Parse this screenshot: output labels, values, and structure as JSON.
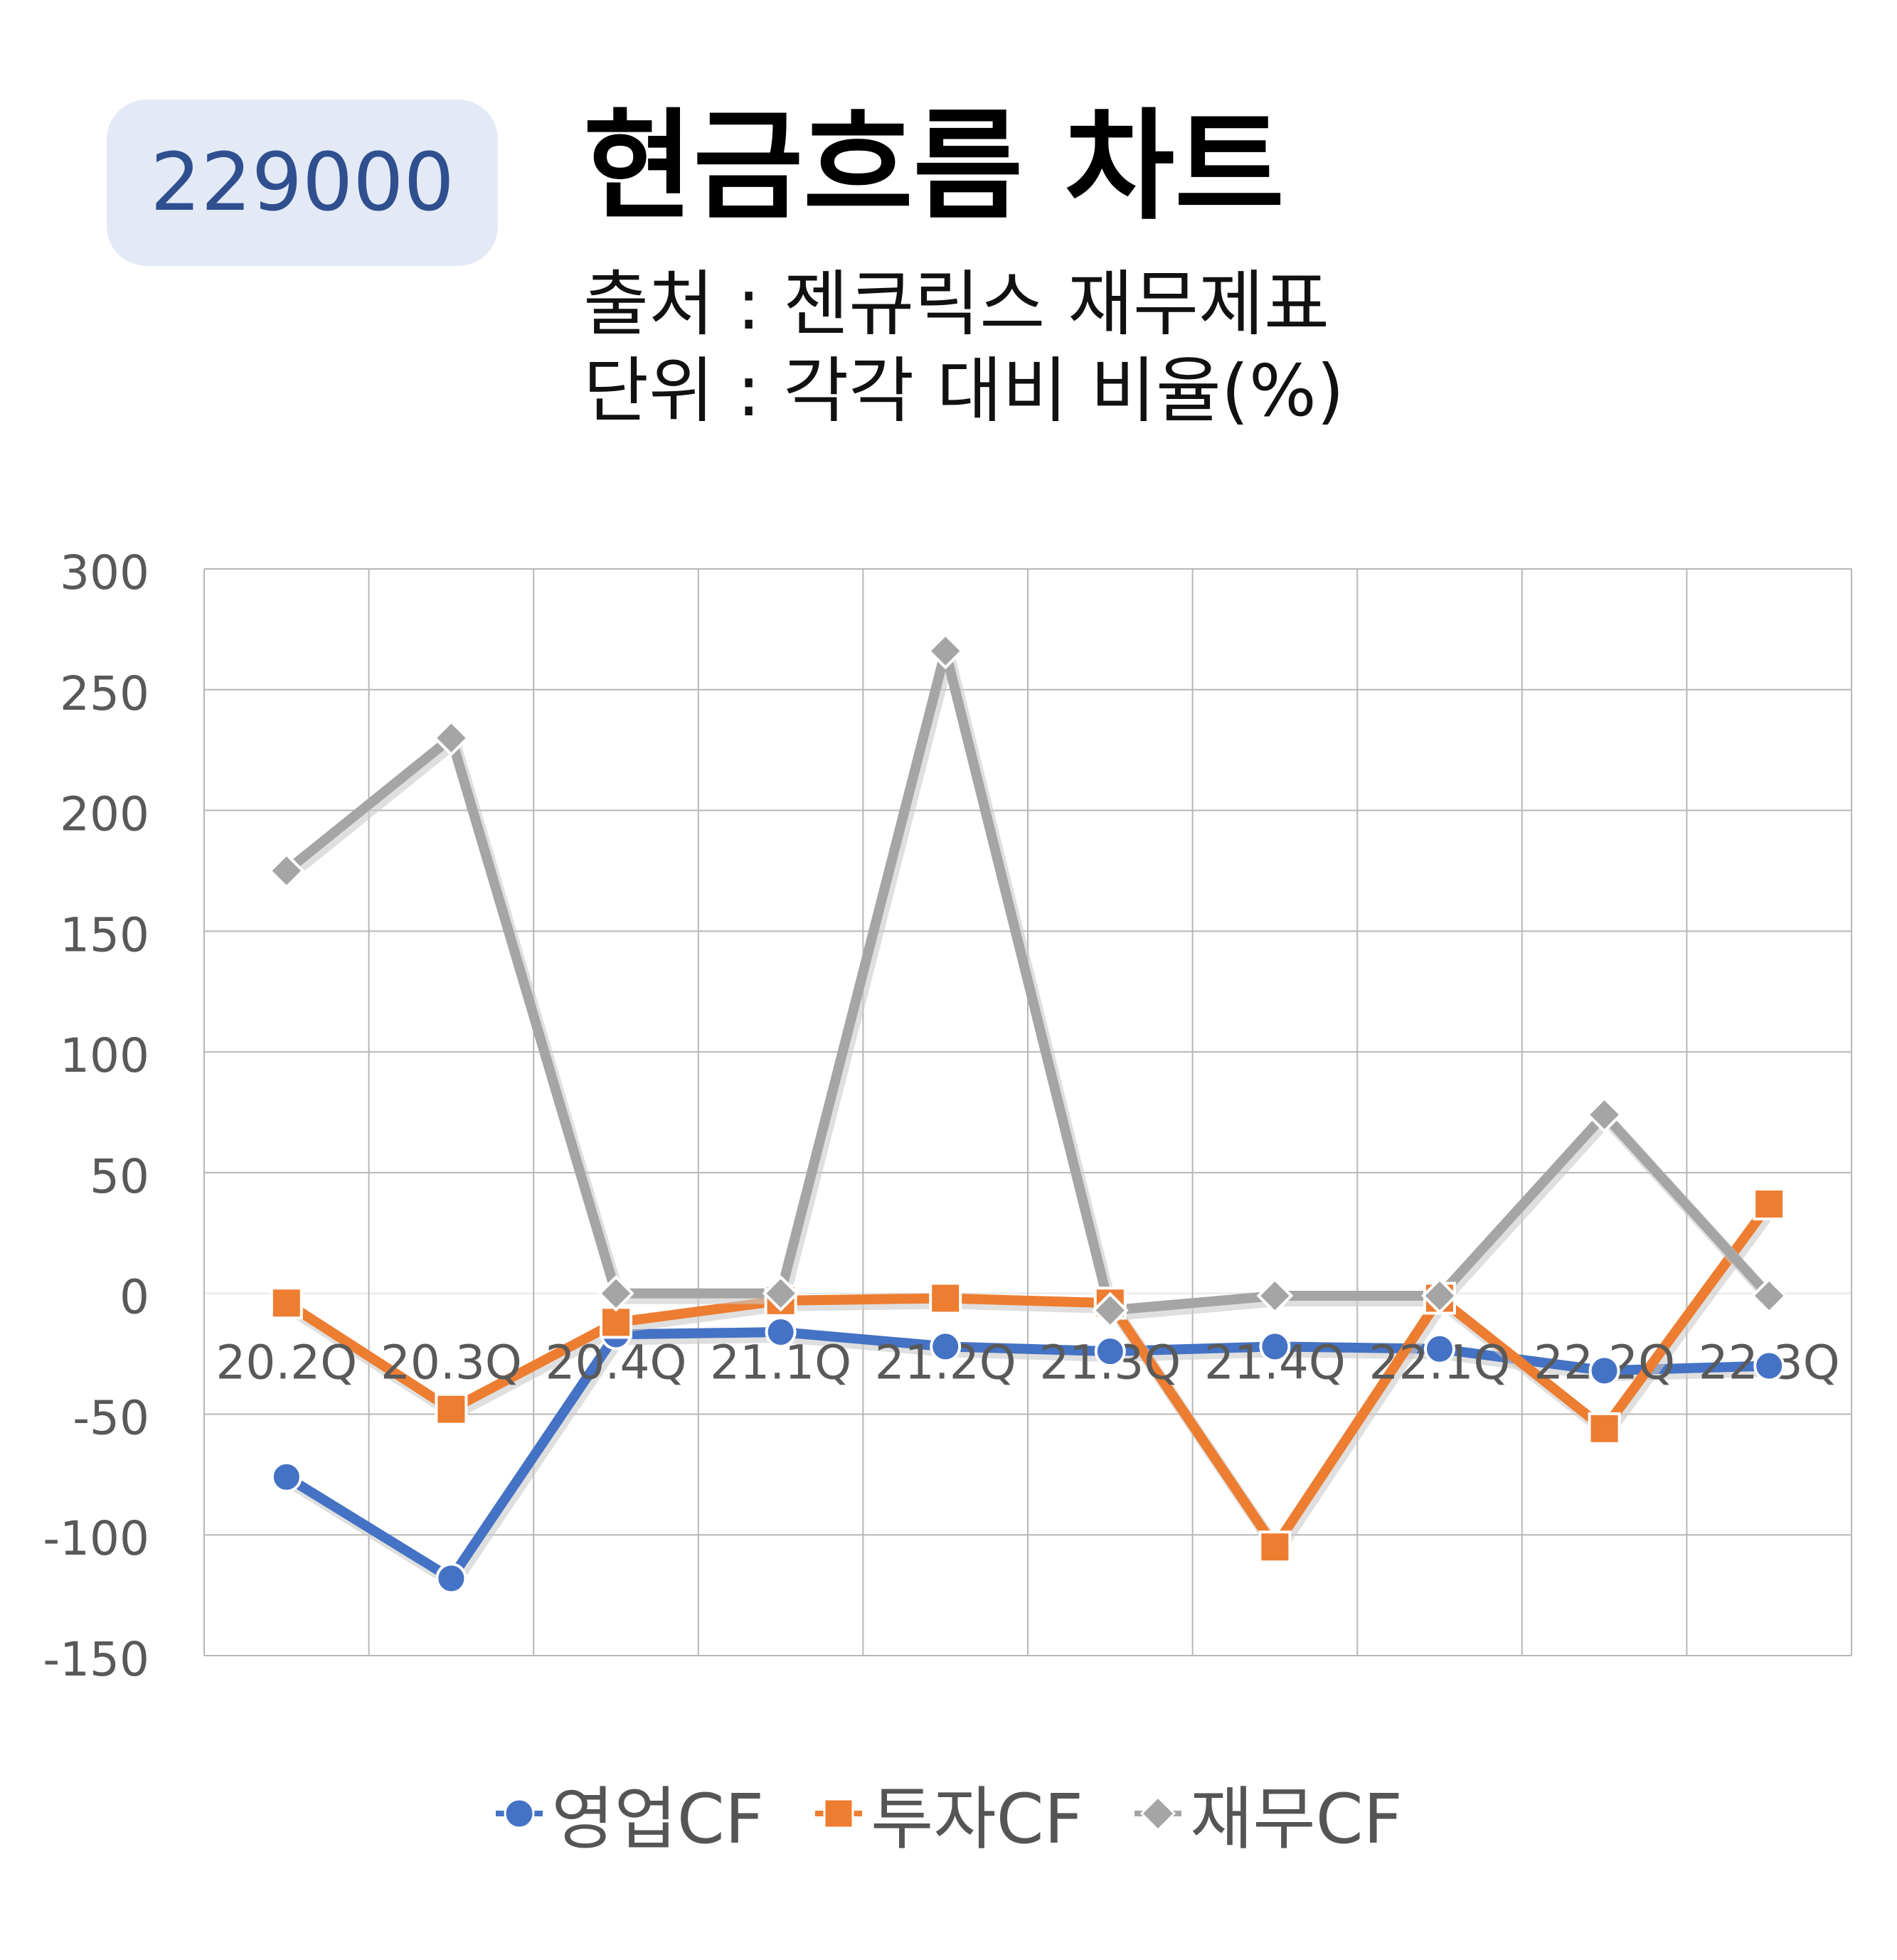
{
  "header": {
    "code": "229000",
    "title": "현금흐름 차트",
    "source_line": "출처 : 젠큐릭스 재무제표",
    "unit_line": "단위 : 각각 대비 비율(%)"
  },
  "chart_data": {
    "type": "line",
    "title": "현금흐름 차트",
    "xlabel": "",
    "ylabel": "",
    "categories": [
      "20.2Q",
      "20.3Q",
      "20.4Q",
      "21.1Q",
      "21.2Q",
      "21.3Q",
      "21.4Q",
      "22.1Q",
      "22.2Q",
      "22.3Q"
    ],
    "ylim": [
      -150,
      300
    ],
    "yticks": [
      300,
      250,
      200,
      150,
      100,
      50,
      0,
      -50,
      -100,
      -150
    ],
    "grid": true,
    "legend": "bottom",
    "series": [
      {
        "name": "영업CF",
        "marker": "circle",
        "color": "#4472c4",
        "values": [
          -76,
          -118,
          -17,
          -16,
          -22,
          -24,
          -22,
          -23,
          -32,
          -30
        ]
      },
      {
        "name": "투자CF",
        "marker": "square",
        "color": "#ed7d31",
        "values": [
          -4,
          -48,
          -12,
          -3,
          -2,
          -4,
          -105,
          -2,
          -56,
          37
        ]
      },
      {
        "name": "재무CF",
        "marker": "diamond",
        "color": "#a5a5a5",
        "values": [
          175,
          230,
          0,
          0,
          266,
          -7,
          -1,
          -1,
          74,
          -1
        ]
      }
    ]
  }
}
